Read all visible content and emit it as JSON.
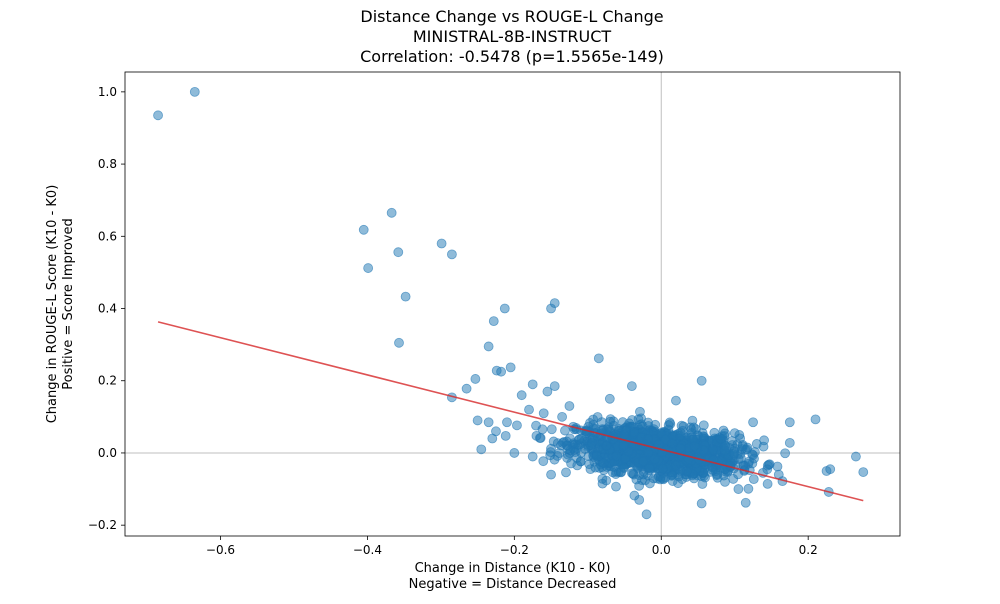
{
  "chart_data": {
    "type": "scatter",
    "title": [
      "Distance Change vs ROUGE-L Change",
      "MINISTRAL-8B-INSTRUCT",
      "Correlation: -0.5478 (p=1.5565e-149)"
    ],
    "xlabel": [
      "Change in Distance (K10 - K0)",
      "Negative = Distance Decreased"
    ],
    "ylabel": [
      "Change in ROUGE-L Score (K10 - K0)",
      "Positive = Score Improved"
    ],
    "xlim": [
      -0.73,
      0.325
    ],
    "ylim": [
      -0.23,
      1.055
    ],
    "xticks": [
      -0.6,
      -0.4,
      -0.2,
      0.0,
      0.2
    ],
    "xtick_labels": [
      "−0.6",
      "−0.4",
      "−0.2",
      "0.0",
      "0.2"
    ],
    "yticks": [
      -0.2,
      0.0,
      0.2,
      0.4,
      0.6,
      0.8,
      1.0
    ],
    "ytick_labels": [
      "−0.2",
      "0.0",
      "0.2",
      "0.4",
      "0.6",
      "0.8",
      "1.0"
    ],
    "reference_lines": {
      "x": 0,
      "y": 0
    },
    "trend_line": {
      "x": [
        -0.685,
        0.275
      ],
      "y": [
        0.363,
        -0.132
      ]
    },
    "cluster": {
      "x_mean": -0.005,
      "x_sd": 0.055,
      "y_mean": 0.005,
      "y_sd": 0.032,
      "count": 1500
    },
    "points": [
      {
        "x": -0.685,
        "y": 0.935
      },
      {
        "x": -0.635,
        "y": 1.0
      },
      {
        "x": -0.405,
        "y": 0.618
      },
      {
        "x": -0.367,
        "y": 0.665
      },
      {
        "x": -0.399,
        "y": 0.512
      },
      {
        "x": -0.358,
        "y": 0.556
      },
      {
        "x": -0.348,
        "y": 0.433
      },
      {
        "x": -0.357,
        "y": 0.305
      },
      {
        "x": -0.299,
        "y": 0.58
      },
      {
        "x": -0.285,
        "y": 0.55
      },
      {
        "x": -0.285,
        "y": 0.154
      },
      {
        "x": -0.265,
        "y": 0.178
      },
      {
        "x": -0.253,
        "y": 0.205
      },
      {
        "x": -0.235,
        "y": 0.295
      },
      {
        "x": -0.228,
        "y": 0.365
      },
      {
        "x": -0.213,
        "y": 0.4
      },
      {
        "x": -0.224,
        "y": 0.228
      },
      {
        "x": -0.218,
        "y": 0.225
      },
      {
        "x": -0.205,
        "y": 0.237
      },
      {
        "x": -0.15,
        "y": 0.4
      },
      {
        "x": -0.145,
        "y": 0.415
      },
      {
        "x": -0.085,
        "y": 0.262
      },
      {
        "x": -0.19,
        "y": 0.16
      },
      {
        "x": -0.175,
        "y": 0.19
      },
      {
        "x": -0.155,
        "y": 0.17
      },
      {
        "x": -0.145,
        "y": 0.185
      },
      {
        "x": -0.25,
        "y": 0.09
      },
      {
        "x": -0.235,
        "y": 0.085
      },
      {
        "x": -0.245,
        "y": 0.01
      },
      {
        "x": -0.2,
        "y": 0.0
      },
      {
        "x": -0.175,
        "y": -0.01
      },
      {
        "x": -0.15,
        "y": -0.06
      },
      {
        "x": -0.08,
        "y": -0.085
      },
      {
        "x": -0.03,
        "y": -0.13
      },
      {
        "x": -0.02,
        "y": -0.17
      },
      {
        "x": 0.055,
        "y": 0.2
      },
      {
        "x": 0.055,
        "y": -0.14
      },
      {
        "x": 0.115,
        "y": -0.138
      },
      {
        "x": 0.175,
        "y": 0.085
      },
      {
        "x": 0.175,
        "y": 0.028
      },
      {
        "x": 0.21,
        "y": 0.093
      },
      {
        "x": 0.225,
        "y": -0.05
      },
      {
        "x": 0.23,
        "y": -0.045
      },
      {
        "x": 0.228,
        "y": -0.108
      },
      {
        "x": 0.265,
        "y": -0.01
      },
      {
        "x": 0.275,
        "y": -0.053
      },
      {
        "x": 0.16,
        "y": -0.06
      },
      {
        "x": 0.165,
        "y": -0.078
      },
      {
        "x": 0.14,
        "y": 0.035
      },
      {
        "x": 0.125,
        "y": 0.085
      },
      {
        "x": 0.1,
        "y": 0.055
      },
      {
        "x": 0.13,
        "y": 0.025
      },
      {
        "x": 0.145,
        "y": -0.035
      },
      {
        "x": 0.105,
        "y": -0.1
      },
      {
        "x": -0.07,
        "y": 0.15
      },
      {
        "x": -0.04,
        "y": 0.185
      },
      {
        "x": 0.02,
        "y": 0.145
      },
      {
        "x": -0.125,
        "y": 0.13
      },
      {
        "x": -0.135,
        "y": 0.1
      },
      {
        "x": -0.21,
        "y": 0.085
      },
      {
        "x": -0.225,
        "y": 0.06
      },
      {
        "x": -0.23,
        "y": 0.04
      },
      {
        "x": -0.18,
        "y": 0.12
      },
      {
        "x": -0.16,
        "y": 0.11
      }
    ]
  }
}
